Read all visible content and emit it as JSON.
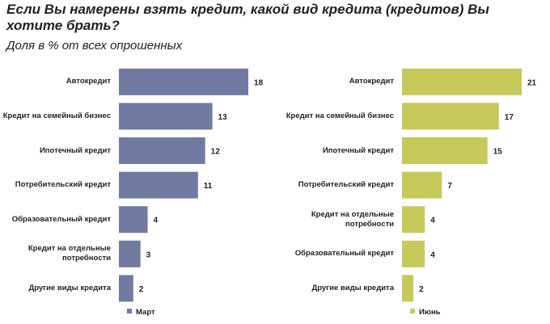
{
  "title": "Если Вы намерены взять кредит, какой вид кредита (кредитов) Вы хотите брать?",
  "subtitle": "Доля в % от всех опрошенных",
  "chart_data": [
    {
      "type": "hbar",
      "categories": [
        "Автокредит",
        "Кредит на семейный бизнес",
        "Ипотечный кредит",
        "Потребительский кредит",
        "Образовательный кредит",
        "Кредит на отдельные потребности",
        "Другие виды кредита"
      ],
      "series": [
        {
          "name": "Март",
          "color": "#717ba1",
          "values": [
            18,
            13,
            12,
            11,
            4,
            3,
            2
          ]
        }
      ],
      "xlim": [
        0,
        18
      ]
    },
    {
      "type": "hbar",
      "categories": [
        "Автокредит",
        "Кредит на семейный бизнес",
        "Ипотечный кредит",
        "Потребительский кредит",
        "Кредит на отдельные потребности",
        "Образовательный кредит",
        "Другие виды кредита"
      ],
      "series": [
        {
          "name": "Июнь",
          "color": "#c4c95a",
          "values": [
            21,
            17,
            15,
            7,
            4,
            4,
            2
          ]
        }
      ],
      "xlim": [
        0,
        21
      ]
    }
  ]
}
